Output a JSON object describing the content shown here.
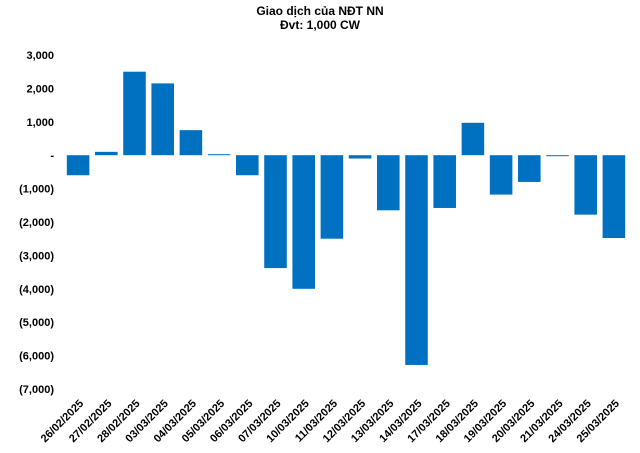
{
  "chart_data": {
    "type": "bar",
    "title": "Giao dịch của NĐT NN",
    "subtitle": "Đvt: 1,000 CW",
    "categories": [
      "26/02/2025",
      "27/02/2025",
      "28/02/2025",
      "03/03/2025",
      "04/03/2025",
      "05/03/2025",
      "06/03/2025",
      "07/03/2025",
      "10/03/2025",
      "11/03/2025",
      "12/03/2025",
      "13/03/2025",
      "14/03/2025",
      "17/03/2025",
      "18/03/2025",
      "19/03/2025",
      "20/03/2025",
      "21/03/2025",
      "24/03/2025",
      "25/03/2025"
    ],
    "values": [
      -600,
      100,
      2500,
      2150,
      750,
      30,
      -600,
      -3380,
      -4000,
      -2500,
      -100,
      -1650,
      -6280,
      -1580,
      970,
      -1180,
      -800,
      -30,
      -1780,
      -2480
    ],
    "ylim": [
      -7000,
      3000
    ],
    "yticks": [
      3000,
      2000,
      1000,
      0,
      -1000,
      -2000,
      -3000,
      -4000,
      -5000,
      -6000,
      -7000
    ],
    "ytick_labels": [
      "3,000",
      "2,000",
      "1,000",
      "-",
      "(1,000)",
      "(2,000)",
      "(3,000)",
      "(4,000)",
      "(5,000)",
      "(6,000)",
      "(7,000)"
    ],
    "bar_color": "#0070C0",
    "grid": false,
    "legend": "none"
  }
}
